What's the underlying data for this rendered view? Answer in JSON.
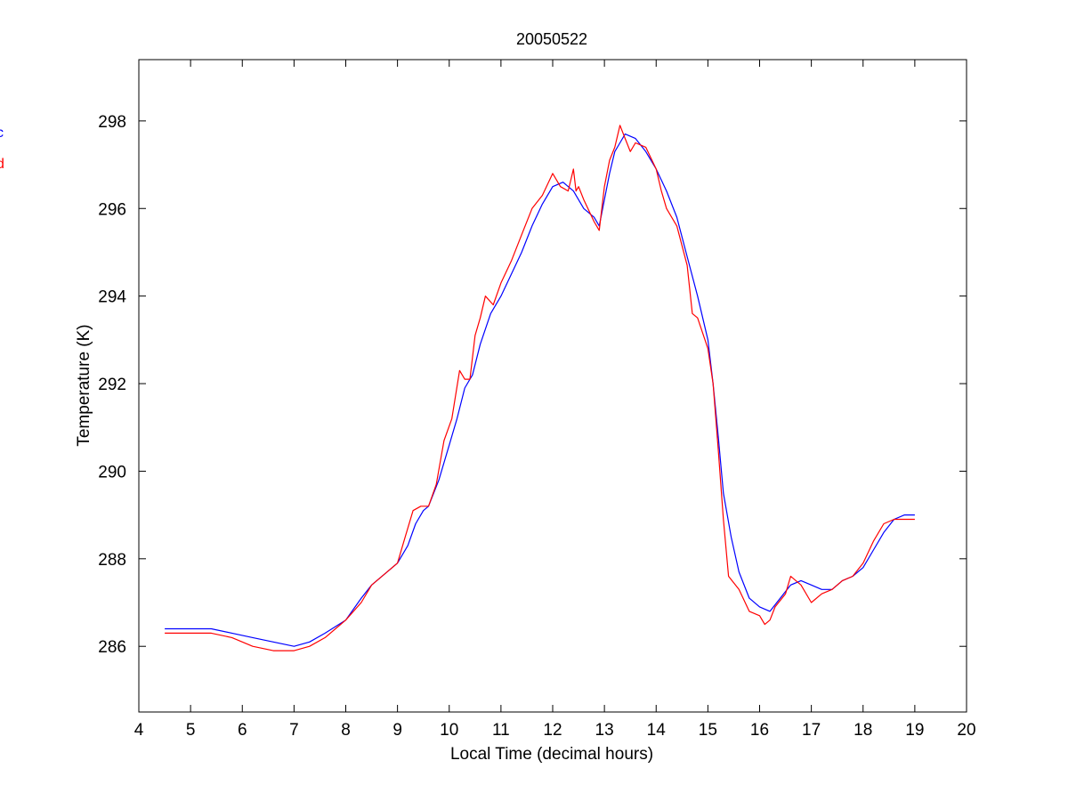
{
  "chart_data": {
    "type": "line",
    "title": "20050522",
    "xlabel": "Local Time (decimal hours)",
    "ylabel": "Temperature (K)",
    "xlim": [
      4,
      20
    ],
    "ylim": [
      284.5,
      299.4
    ],
    "xticks": [
      4,
      5,
      6,
      7,
      8,
      9,
      10,
      11,
      12,
      13,
      14,
      15,
      16,
      17,
      18,
      19,
      20
    ],
    "yticks": [
      286,
      288,
      290,
      292,
      294,
      296,
      298
    ],
    "grid": false,
    "legend_position": "left, partially cut off",
    "series": [
      {
        "name": "c",
        "color": "#0000ff",
        "x": [
          4.5,
          5.0,
          5.4,
          5.8,
          6.2,
          6.6,
          7.0,
          7.3,
          7.6,
          8.0,
          8.3,
          8.5,
          8.8,
          9.0,
          9.2,
          9.35,
          9.5,
          9.6,
          9.8,
          10.0,
          10.15,
          10.3,
          10.45,
          10.6,
          10.8,
          11.0,
          11.2,
          11.4,
          11.6,
          11.8,
          12.0,
          12.2,
          12.4,
          12.5,
          12.6,
          12.8,
          12.9,
          13.0,
          13.1,
          13.2,
          13.3,
          13.4,
          13.6,
          13.8,
          14.0,
          14.2,
          14.4,
          14.6,
          14.8,
          15.0,
          15.1,
          15.2,
          15.3,
          15.45,
          15.6,
          15.8,
          16.0,
          16.2,
          16.4,
          16.6,
          16.8,
          17.0,
          17.2,
          17.4,
          17.6,
          17.8,
          18.0,
          18.2,
          18.4,
          18.6,
          18.8,
          19.0
        ],
        "y": [
          286.4,
          286.4,
          286.4,
          286.3,
          286.2,
          286.1,
          286.0,
          286.1,
          286.3,
          286.6,
          287.1,
          287.4,
          287.7,
          287.9,
          288.3,
          288.8,
          289.1,
          289.2,
          289.8,
          290.6,
          291.2,
          291.9,
          292.2,
          292.9,
          293.6,
          294.0,
          294.5,
          295.0,
          295.6,
          296.1,
          296.5,
          296.6,
          296.4,
          296.2,
          296.0,
          295.8,
          295.6,
          296.2,
          296.8,
          297.3,
          297.5,
          297.7,
          297.6,
          297.3,
          296.9,
          296.4,
          295.8,
          294.9,
          294.0,
          293.0,
          292.0,
          290.8,
          289.5,
          288.5,
          287.7,
          287.1,
          286.9,
          286.8,
          287.1,
          287.4,
          287.5,
          287.4,
          287.3,
          287.3,
          287.5,
          287.6,
          287.8,
          288.2,
          288.6,
          288.9,
          289.0,
          289.0
        ]
      },
      {
        "name": "d",
        "color": "#ff0000",
        "x": [
          4.5,
          5.0,
          5.4,
          5.8,
          6.2,
          6.6,
          7.0,
          7.3,
          7.6,
          8.0,
          8.3,
          8.5,
          8.8,
          9.0,
          9.15,
          9.3,
          9.45,
          9.6,
          9.75,
          9.9,
          10.05,
          10.2,
          10.3,
          10.4,
          10.5,
          10.6,
          10.7,
          10.85,
          11.0,
          11.2,
          11.4,
          11.6,
          11.8,
          12.0,
          12.15,
          12.3,
          12.4,
          12.45,
          12.5,
          12.6,
          12.8,
          12.9,
          13.0,
          13.1,
          13.2,
          13.3,
          13.4,
          13.5,
          13.6,
          13.8,
          14.0,
          14.1,
          14.2,
          14.4,
          14.6,
          14.7,
          14.8,
          15.0,
          15.1,
          15.2,
          15.3,
          15.4,
          15.6,
          15.8,
          16.0,
          16.1,
          16.2,
          16.3,
          16.5,
          16.6,
          16.8,
          17.0,
          17.2,
          17.4,
          17.6,
          17.8,
          18.0,
          18.2,
          18.4,
          18.6,
          18.8,
          19.0
        ],
        "y": [
          286.3,
          286.3,
          286.3,
          286.2,
          286.0,
          285.9,
          285.9,
          286.0,
          286.2,
          286.6,
          287.0,
          287.4,
          287.7,
          287.9,
          288.5,
          289.1,
          289.2,
          289.2,
          289.7,
          290.7,
          291.2,
          292.3,
          292.1,
          292.1,
          293.1,
          293.5,
          294.0,
          293.8,
          294.3,
          294.8,
          295.4,
          296.0,
          296.3,
          296.8,
          296.5,
          296.4,
          296.9,
          296.4,
          296.5,
          296.2,
          295.7,
          295.5,
          296.5,
          297.1,
          297.4,
          297.9,
          297.6,
          297.3,
          297.5,
          297.4,
          296.9,
          296.4,
          296.0,
          295.6,
          294.7,
          293.6,
          293.5,
          292.8,
          292.0,
          290.5,
          288.9,
          287.6,
          287.3,
          286.8,
          286.7,
          286.5,
          286.6,
          286.9,
          287.2,
          287.6,
          287.4,
          287.0,
          287.2,
          287.3,
          287.5,
          287.6,
          287.9,
          288.4,
          288.8,
          288.9,
          288.9,
          288.9
        ]
      }
    ]
  }
}
